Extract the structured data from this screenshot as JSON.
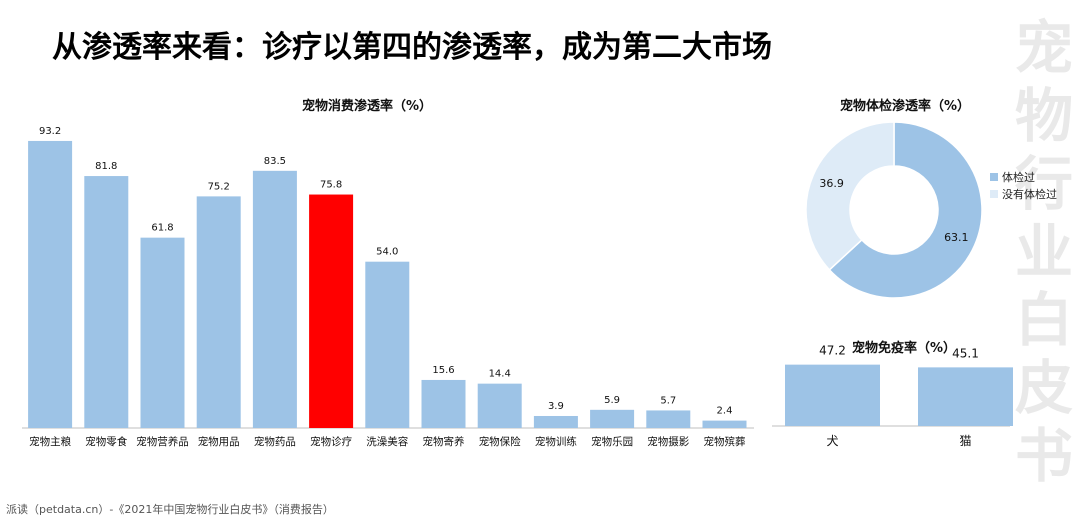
{
  "page": {
    "title": "从渗透率来看：诊疗以第四的渗透率，成为第二大市场",
    "watermark": [
      "宠",
      "物",
      "行",
      "业",
      "白",
      "皮",
      "书"
    ],
    "source": "派读（petdata.cn）-《2021年中国宠物行业白皮书》（消费报告）"
  },
  "colors": {
    "bar": "#9dc3e6",
    "highlight": "#ff0000",
    "donut_light": "#deebf7"
  },
  "chart_data": [
    {
      "type": "bar",
      "title": "宠物消费渗透率（%）",
      "categories": [
        "宠物主粮",
        "宠物零食",
        "宠物营养品",
        "宠物用品",
        "宠物药品",
        "宠物诊疗",
        "洗澡美容",
        "宠物寄养",
        "宠物保险",
        "宠物训练",
        "宠物乐园",
        "宠物摄影",
        "宠物殡葬"
      ],
      "values": [
        93.2,
        81.8,
        61.8,
        75.2,
        83.5,
        75.8,
        54.0,
        15.6,
        14.4,
        3.9,
        5.9,
        5.7,
        2.4
      ],
      "value_labels": [
        "93.2",
        "81.8",
        "61.8",
        "75.2",
        "83.5",
        "75.8",
        "54.0",
        "15.6",
        "14.4",
        "3.9",
        "5.9",
        "5.7",
        "2.4"
      ],
      "highlight_index": 5,
      "ylim": [
        0,
        100
      ],
      "grid": false
    },
    {
      "type": "pie",
      "title": "宠物体检渗透率（%）",
      "labels": [
        "体检过",
        "没有体检过"
      ],
      "values": [
        63.1,
        36.9
      ],
      "value_labels": [
        "63.1",
        "36.9"
      ],
      "donut": true,
      "legend": "right"
    },
    {
      "type": "bar",
      "title": "宠物免疫率（%）",
      "categories": [
        "犬",
        "猫"
      ],
      "values": [
        47.2,
        45.1
      ],
      "value_labels": [
        "47.2",
        "45.1"
      ],
      "grid": false
    }
  ]
}
